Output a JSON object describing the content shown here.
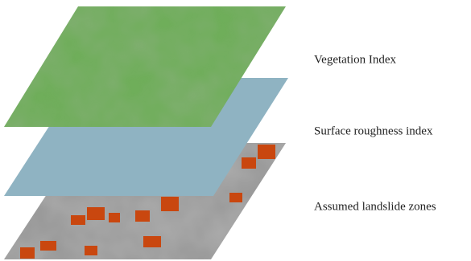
{
  "layers": [
    {
      "label": "Vegetation Index"
    },
    {
      "label": "Surface roughness index"
    },
    {
      "label": "Assumed landslide zones"
    }
  ]
}
